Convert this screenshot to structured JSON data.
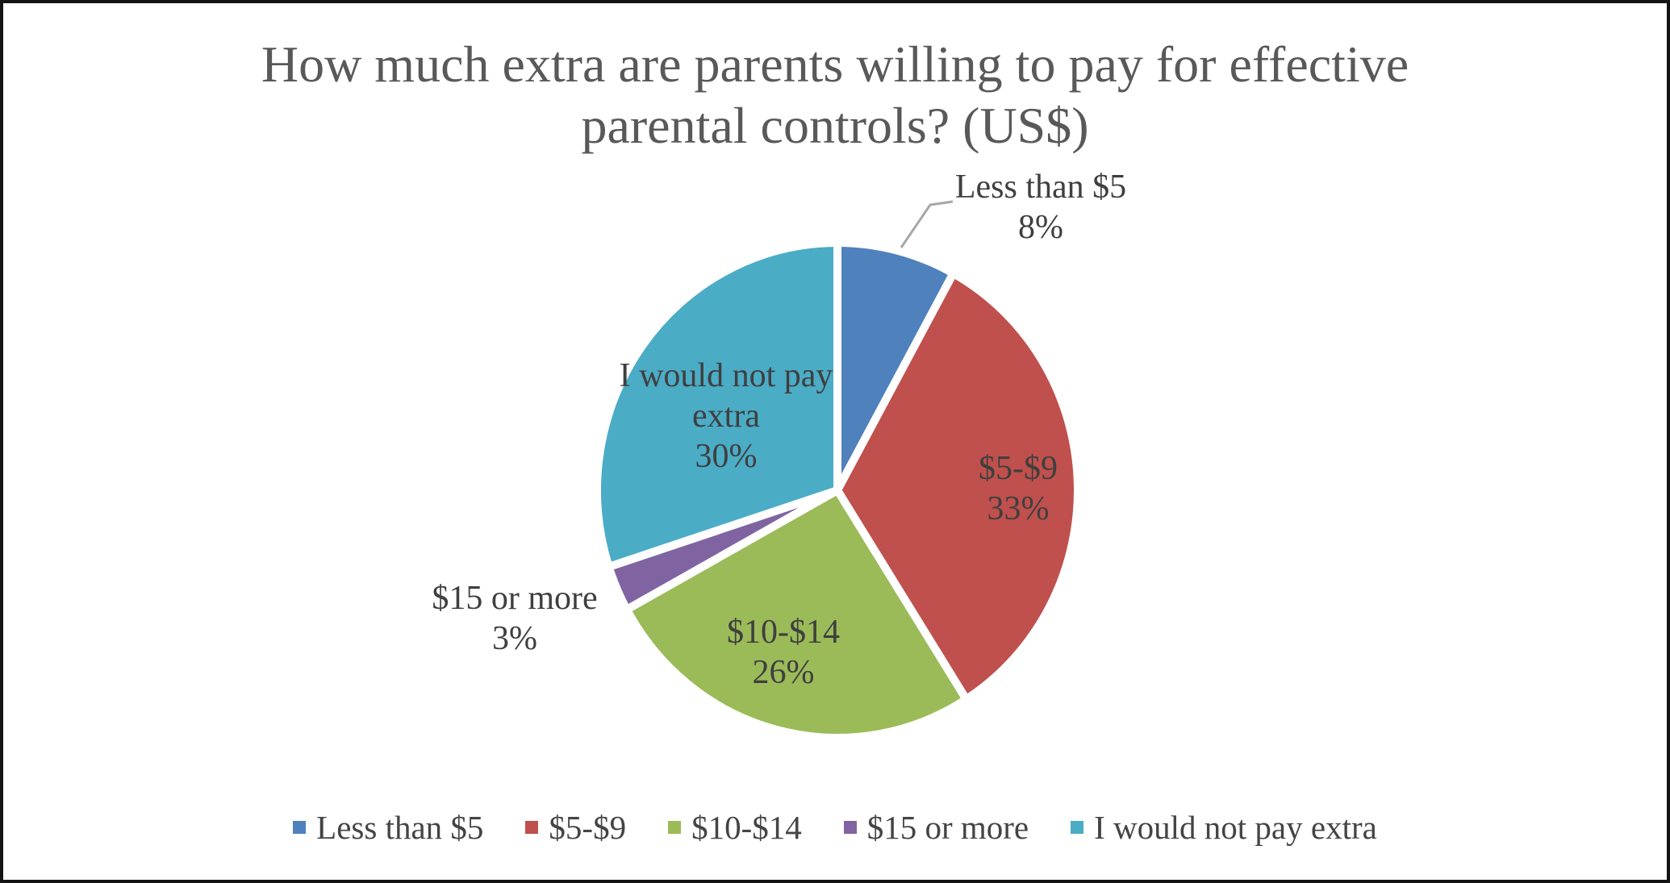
{
  "frame": {
    "background": "#ffffff",
    "border_color": "#141414"
  },
  "title": {
    "lines": [
      "How much extra are parents willing to pay for effective",
      "parental controls? (US$)"
    ],
    "full_text": "How much extra are parents willing to pay for effective parental controls? (US$)",
    "color": "#595959"
  },
  "chart_data": {
    "type": "pie",
    "title": "How much extra are parents willing to pay for effective parental controls? (US$)",
    "categories": [
      "Less than $5",
      "$5-$9",
      "$10-$14",
      "$15 or more",
      "I would not pay extra"
    ],
    "values": [
      8,
      33,
      26,
      3,
      30
    ],
    "unit": "%",
    "colors": [
      "#4F81BD",
      "#C0504D",
      "#9BBB59",
      "#8064A2",
      "#4BACC6"
    ],
    "data_label_texts": [
      "Less than $5\n8%",
      "$5-$9\n33%",
      "$10-$14\n26%",
      "$15 or more\n3%",
      "I would not pay extra\n30%"
    ],
    "label_placement": [
      "outside-with-leader-line",
      "inside",
      "inside",
      "outside",
      "inside"
    ],
    "start_angle_deg": 0,
    "direction": "clockwise",
    "slice_border_color": "#ffffff",
    "leader_line_color": "#A6A6A6",
    "label_text_color": "#3f3f3f",
    "legend_position": "bottom",
    "legend_items": [
      "Less than $5",
      "$5-$9",
      "$10-$14",
      "$15 or more",
      "I would not pay extra"
    ]
  }
}
